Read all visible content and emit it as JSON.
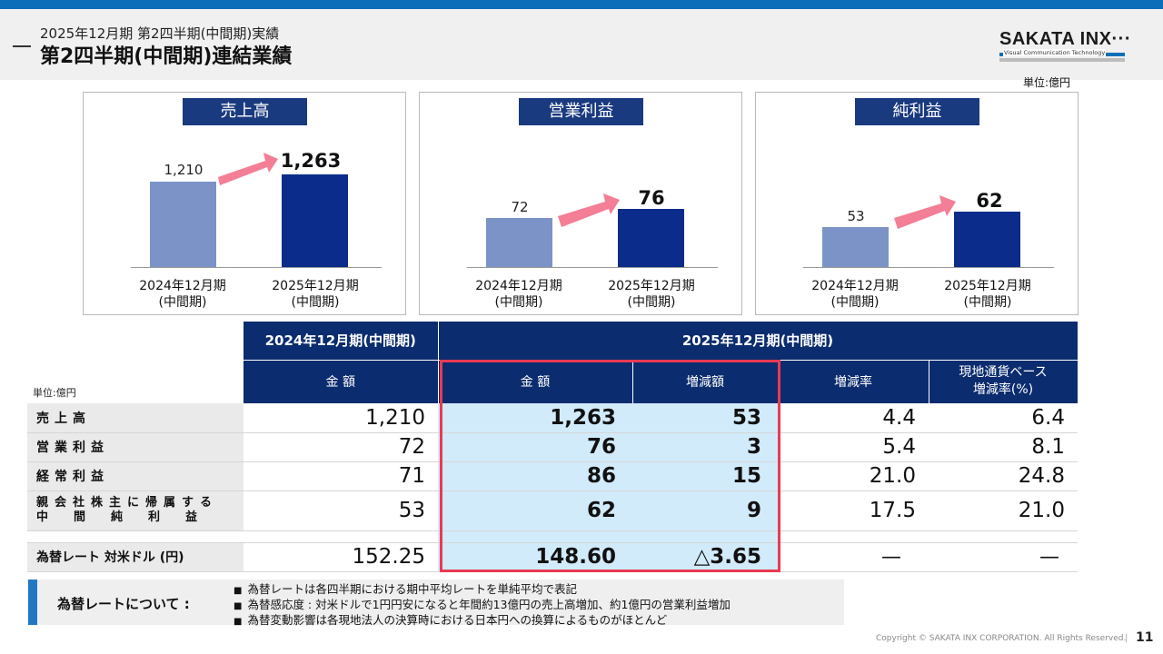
{
  "header": {
    "subtitle": "2025年12月期 第2四半期(中間期)実績",
    "title": "第2四半期(中間期)連結業績",
    "logo_text": "SAKATA INX",
    "logo_tagline": "Visual Communication Technology"
  },
  "unit_label": "単位:億円",
  "panels": [
    {
      "title": "売上高",
      "old_value": "1,210",
      "new_value": "1,263",
      "old_label": [
        "2024年12月期",
        "(中間期)"
      ],
      "new_label": [
        "2025年12月期",
        "(中間期)"
      ]
    },
    {
      "title": "営業利益",
      "old_value": "72",
      "new_value": "76",
      "old_label": [
        "2024年12月期",
        "(中間期)"
      ],
      "new_label": [
        "2025年12月期",
        "(中間期)"
      ]
    },
    {
      "title": "純利益",
      "old_value": "53",
      "new_value": "62",
      "old_label": [
        "2024年12月期",
        "(中間期)"
      ],
      "new_label": [
        "2025年12月期",
        "(中間期)"
      ]
    }
  ],
  "table": {
    "unit": "単位:億円",
    "period_prev": "2024年12月期(中間期)",
    "period_curr": "2025年12月期(中間期)",
    "col_amount_prev": "金 額",
    "col_amount_curr": "金 額",
    "col_change": "増減額",
    "col_rate": "増減率",
    "col_local_rate_1": "現地通貨ベース",
    "col_local_rate_2": "増減率(%)",
    "rows": [
      {
        "label": "売上高",
        "prev": "1,210",
        "curr": "1,263",
        "change": "53",
        "rate": "4.4",
        "local": "6.4"
      },
      {
        "label": "営業利益",
        "prev": "72",
        "curr": "76",
        "change": "3",
        "rate": "5.4",
        "local": "8.1"
      },
      {
        "label": "経常利益",
        "prev": "71",
        "curr": "86",
        "change": "15",
        "rate": "21.0",
        "local": "24.8"
      },
      {
        "label_1": "親会社株主に帰属する",
        "label_2": "中間純利益",
        "prev": "53",
        "curr": "62",
        "change": "9",
        "rate": "17.5",
        "local": "21.0"
      }
    ],
    "fx_row": {
      "label": "為替レート 対米ドル (円)",
      "prev": "152.25",
      "curr": "148.60",
      "change": "△3.65",
      "rate": "—",
      "local": "—"
    }
  },
  "note": {
    "title": "為替レートについて :",
    "items": [
      "為替レートは各四半期における期中平均レートを単純平均で表記",
      "為替感応度 : 対米ドルで1円円安になると年間約13億円の売上高増加、約1億円の営業利益増加",
      "為替変動影響は各現地法人の決算時における日本円への換算によるものがほとんど"
    ]
  },
  "footer": {
    "copyright": "Copyright © SAKATA INX CORPORATION. All Rights Reserved.",
    "page": "11"
  },
  "colors": {
    "accent_blue": "#0c6eb8",
    "navy": "#0b2c6e",
    "bar_old": "#7b93c6",
    "bar_new": "#0b2c8a",
    "arrow": "#f37e95",
    "highlight": "#d2ebfb",
    "frame_red": "#e83a54"
  }
}
